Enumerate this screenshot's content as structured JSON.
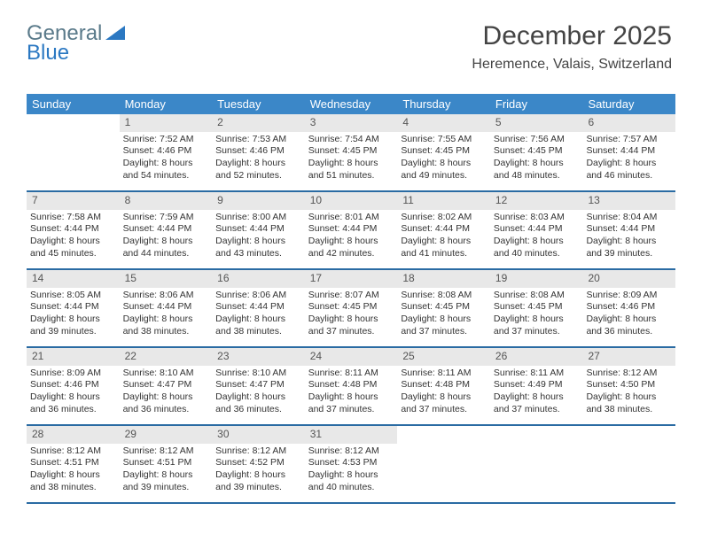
{
  "logo": {
    "part1": "General",
    "part2": "Blue"
  },
  "title": {
    "month": "December 2025",
    "location": "Heremence, Valais, Switzerland"
  },
  "colors": {
    "header_bg": "#3b87c8",
    "header_text": "#ffffff",
    "daynum_bg": "#e8e8e8",
    "row_border": "#2a6ba3",
    "logo_general": "#5a7a8a",
    "logo_blue": "#2b78c2",
    "text": "#333333"
  },
  "weekdays": [
    "Sunday",
    "Monday",
    "Tuesday",
    "Wednesday",
    "Thursday",
    "Friday",
    "Saturday"
  ],
  "weeks": [
    [
      {
        "n": "",
        "sunrise": "",
        "sunset": "",
        "daylight": "",
        "empty": true
      },
      {
        "n": "1",
        "sunrise": "Sunrise: 7:52 AM",
        "sunset": "Sunset: 4:46 PM",
        "daylight": "Daylight: 8 hours and 54 minutes."
      },
      {
        "n": "2",
        "sunrise": "Sunrise: 7:53 AM",
        "sunset": "Sunset: 4:46 PM",
        "daylight": "Daylight: 8 hours and 52 minutes."
      },
      {
        "n": "3",
        "sunrise": "Sunrise: 7:54 AM",
        "sunset": "Sunset: 4:45 PM",
        "daylight": "Daylight: 8 hours and 51 minutes."
      },
      {
        "n": "4",
        "sunrise": "Sunrise: 7:55 AM",
        "sunset": "Sunset: 4:45 PM",
        "daylight": "Daylight: 8 hours and 49 minutes."
      },
      {
        "n": "5",
        "sunrise": "Sunrise: 7:56 AM",
        "sunset": "Sunset: 4:45 PM",
        "daylight": "Daylight: 8 hours and 48 minutes."
      },
      {
        "n": "6",
        "sunrise": "Sunrise: 7:57 AM",
        "sunset": "Sunset: 4:44 PM",
        "daylight": "Daylight: 8 hours and 46 minutes."
      }
    ],
    [
      {
        "n": "7",
        "sunrise": "Sunrise: 7:58 AM",
        "sunset": "Sunset: 4:44 PM",
        "daylight": "Daylight: 8 hours and 45 minutes."
      },
      {
        "n": "8",
        "sunrise": "Sunrise: 7:59 AM",
        "sunset": "Sunset: 4:44 PM",
        "daylight": "Daylight: 8 hours and 44 minutes."
      },
      {
        "n": "9",
        "sunrise": "Sunrise: 8:00 AM",
        "sunset": "Sunset: 4:44 PM",
        "daylight": "Daylight: 8 hours and 43 minutes."
      },
      {
        "n": "10",
        "sunrise": "Sunrise: 8:01 AM",
        "sunset": "Sunset: 4:44 PM",
        "daylight": "Daylight: 8 hours and 42 minutes."
      },
      {
        "n": "11",
        "sunrise": "Sunrise: 8:02 AM",
        "sunset": "Sunset: 4:44 PM",
        "daylight": "Daylight: 8 hours and 41 minutes."
      },
      {
        "n": "12",
        "sunrise": "Sunrise: 8:03 AM",
        "sunset": "Sunset: 4:44 PM",
        "daylight": "Daylight: 8 hours and 40 minutes."
      },
      {
        "n": "13",
        "sunrise": "Sunrise: 8:04 AM",
        "sunset": "Sunset: 4:44 PM",
        "daylight": "Daylight: 8 hours and 39 minutes."
      }
    ],
    [
      {
        "n": "14",
        "sunrise": "Sunrise: 8:05 AM",
        "sunset": "Sunset: 4:44 PM",
        "daylight": "Daylight: 8 hours and 39 minutes."
      },
      {
        "n": "15",
        "sunrise": "Sunrise: 8:06 AM",
        "sunset": "Sunset: 4:44 PM",
        "daylight": "Daylight: 8 hours and 38 minutes."
      },
      {
        "n": "16",
        "sunrise": "Sunrise: 8:06 AM",
        "sunset": "Sunset: 4:44 PM",
        "daylight": "Daylight: 8 hours and 38 minutes."
      },
      {
        "n": "17",
        "sunrise": "Sunrise: 8:07 AM",
        "sunset": "Sunset: 4:45 PM",
        "daylight": "Daylight: 8 hours and 37 minutes."
      },
      {
        "n": "18",
        "sunrise": "Sunrise: 8:08 AM",
        "sunset": "Sunset: 4:45 PM",
        "daylight": "Daylight: 8 hours and 37 minutes."
      },
      {
        "n": "19",
        "sunrise": "Sunrise: 8:08 AM",
        "sunset": "Sunset: 4:45 PM",
        "daylight": "Daylight: 8 hours and 37 minutes."
      },
      {
        "n": "20",
        "sunrise": "Sunrise: 8:09 AM",
        "sunset": "Sunset: 4:46 PM",
        "daylight": "Daylight: 8 hours and 36 minutes."
      }
    ],
    [
      {
        "n": "21",
        "sunrise": "Sunrise: 8:09 AM",
        "sunset": "Sunset: 4:46 PM",
        "daylight": "Daylight: 8 hours and 36 minutes."
      },
      {
        "n": "22",
        "sunrise": "Sunrise: 8:10 AM",
        "sunset": "Sunset: 4:47 PM",
        "daylight": "Daylight: 8 hours and 36 minutes."
      },
      {
        "n": "23",
        "sunrise": "Sunrise: 8:10 AM",
        "sunset": "Sunset: 4:47 PM",
        "daylight": "Daylight: 8 hours and 36 minutes."
      },
      {
        "n": "24",
        "sunrise": "Sunrise: 8:11 AM",
        "sunset": "Sunset: 4:48 PM",
        "daylight": "Daylight: 8 hours and 37 minutes."
      },
      {
        "n": "25",
        "sunrise": "Sunrise: 8:11 AM",
        "sunset": "Sunset: 4:48 PM",
        "daylight": "Daylight: 8 hours and 37 minutes."
      },
      {
        "n": "26",
        "sunrise": "Sunrise: 8:11 AM",
        "sunset": "Sunset: 4:49 PM",
        "daylight": "Daylight: 8 hours and 37 minutes."
      },
      {
        "n": "27",
        "sunrise": "Sunrise: 8:12 AM",
        "sunset": "Sunset: 4:50 PM",
        "daylight": "Daylight: 8 hours and 38 minutes."
      }
    ],
    [
      {
        "n": "28",
        "sunrise": "Sunrise: 8:12 AM",
        "sunset": "Sunset: 4:51 PM",
        "daylight": "Daylight: 8 hours and 38 minutes."
      },
      {
        "n": "29",
        "sunrise": "Sunrise: 8:12 AM",
        "sunset": "Sunset: 4:51 PM",
        "daylight": "Daylight: 8 hours and 39 minutes."
      },
      {
        "n": "30",
        "sunrise": "Sunrise: 8:12 AM",
        "sunset": "Sunset: 4:52 PM",
        "daylight": "Daylight: 8 hours and 39 minutes."
      },
      {
        "n": "31",
        "sunrise": "Sunrise: 8:12 AM",
        "sunset": "Sunset: 4:53 PM",
        "daylight": "Daylight: 8 hours and 40 minutes."
      },
      {
        "n": "",
        "sunrise": "",
        "sunset": "",
        "daylight": "",
        "empty": true
      },
      {
        "n": "",
        "sunrise": "",
        "sunset": "",
        "daylight": "",
        "empty": true
      },
      {
        "n": "",
        "sunrise": "",
        "sunset": "",
        "daylight": "",
        "empty": true
      }
    ]
  ]
}
